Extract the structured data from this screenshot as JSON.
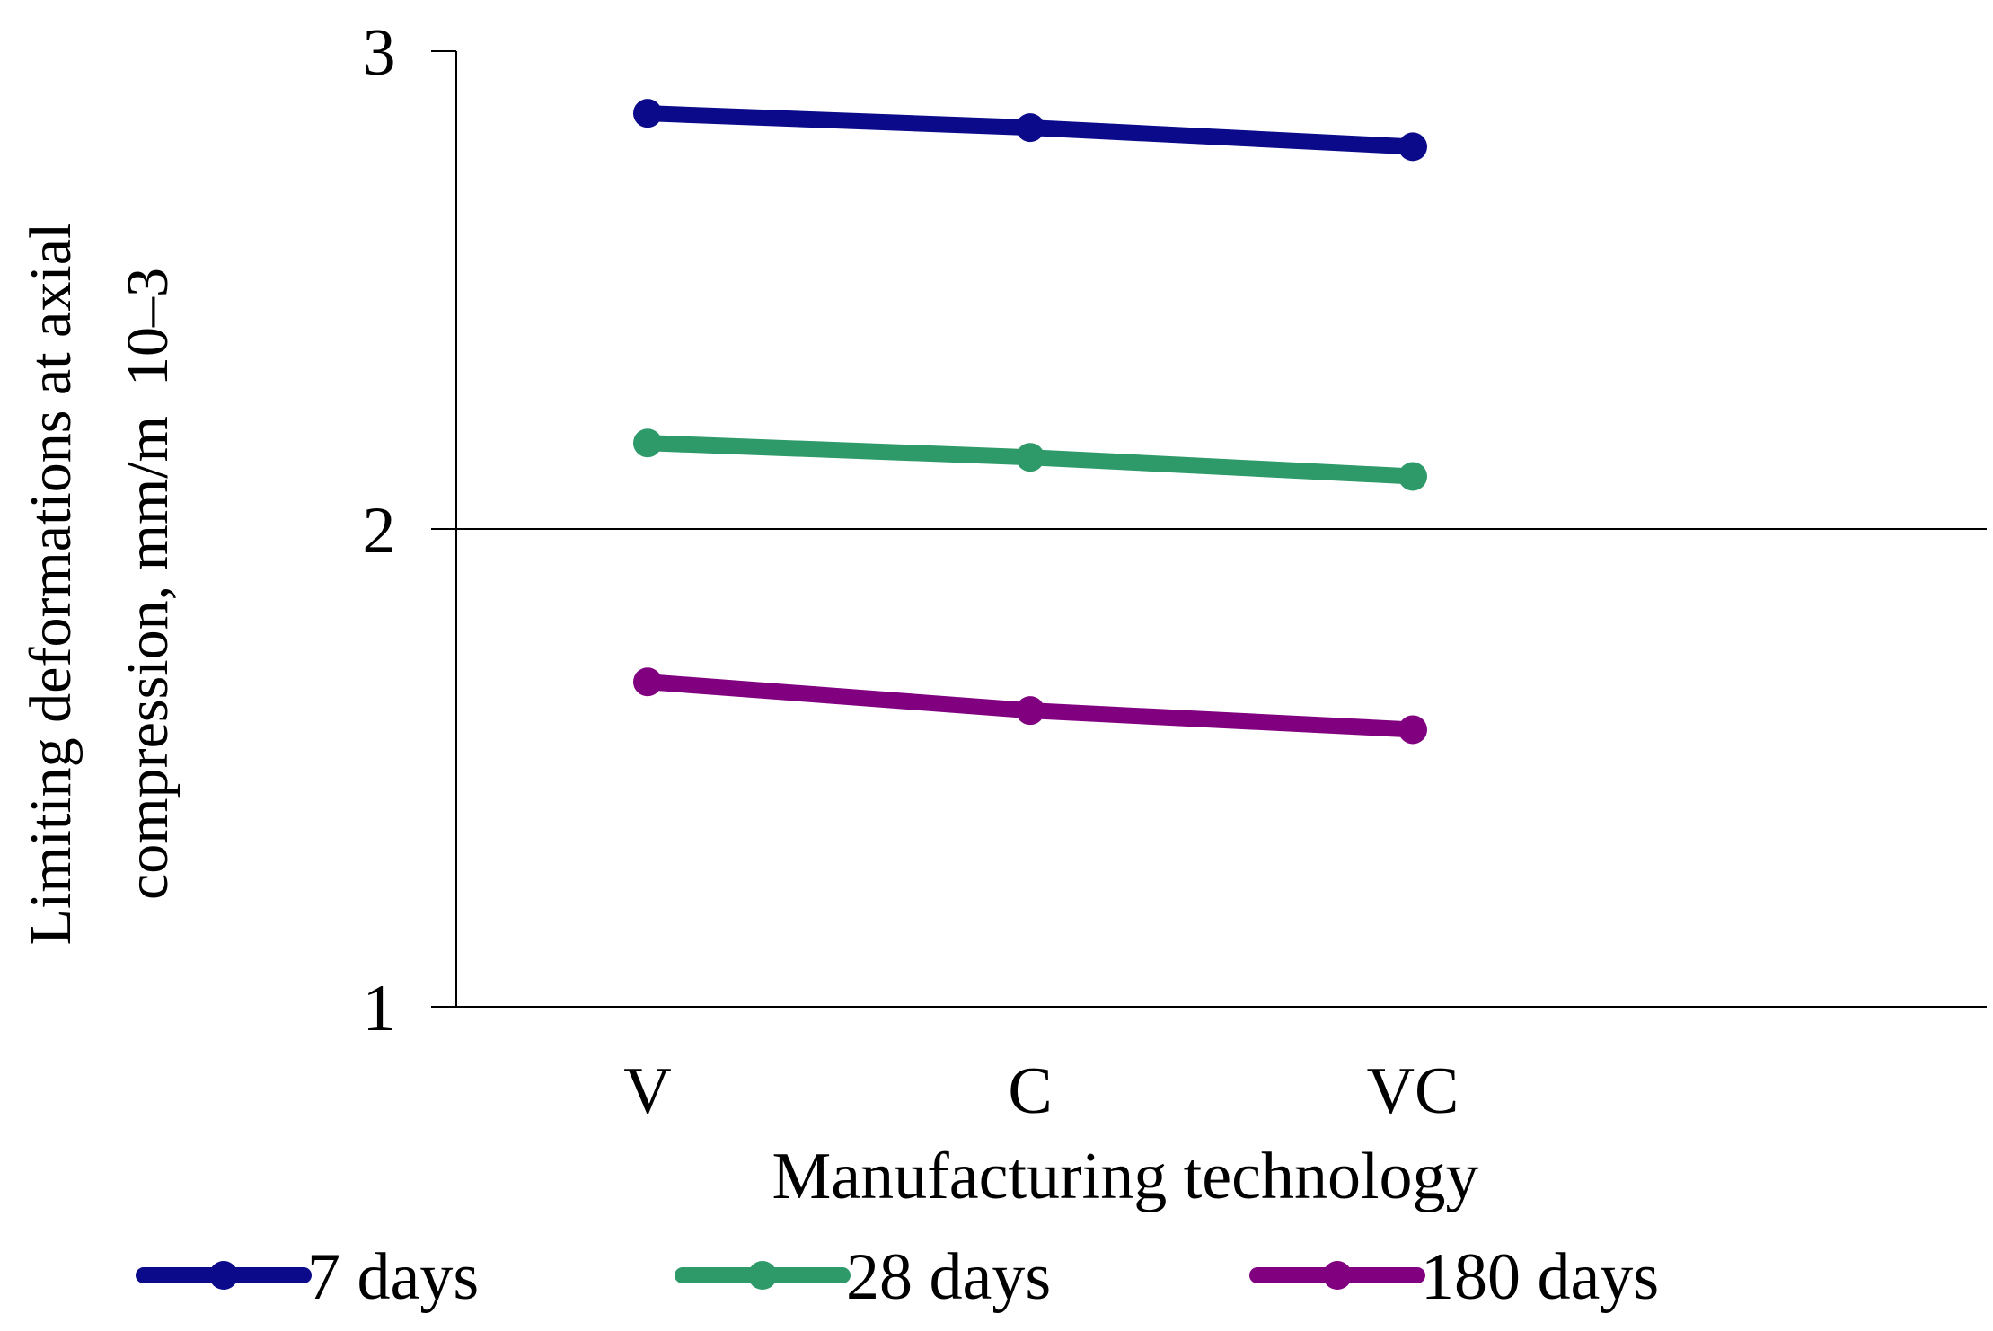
{
  "chart_data": {
    "type": "line",
    "title": "",
    "xlabel": "Manufacturing technology",
    "ylabel_line1": "Limiting deformations at axial",
    "ylabel_line2": "compression, mm/m  10–3",
    "categories": [
      "V",
      "C",
      "VC"
    ],
    "category_slots": 4,
    "ylim": [
      1,
      3
    ],
    "yticks": [
      1,
      2,
      3
    ],
    "ytick_labels": [
      "1",
      "2",
      "3"
    ],
    "gridlines": [
      2
    ],
    "legend_position": "bottom",
    "series": [
      {
        "name": "7 days",
        "color": "#0a0a8a",
        "values": [
          2.87,
          2.84,
          2.8
        ]
      },
      {
        "name": "28 days",
        "color": "#2e9a6a",
        "values": [
          2.18,
          2.15,
          2.11
        ]
      },
      {
        "name": "180 days",
        "color": "#800080",
        "values": [
          1.68,
          1.62,
          1.58
        ]
      }
    ]
  }
}
